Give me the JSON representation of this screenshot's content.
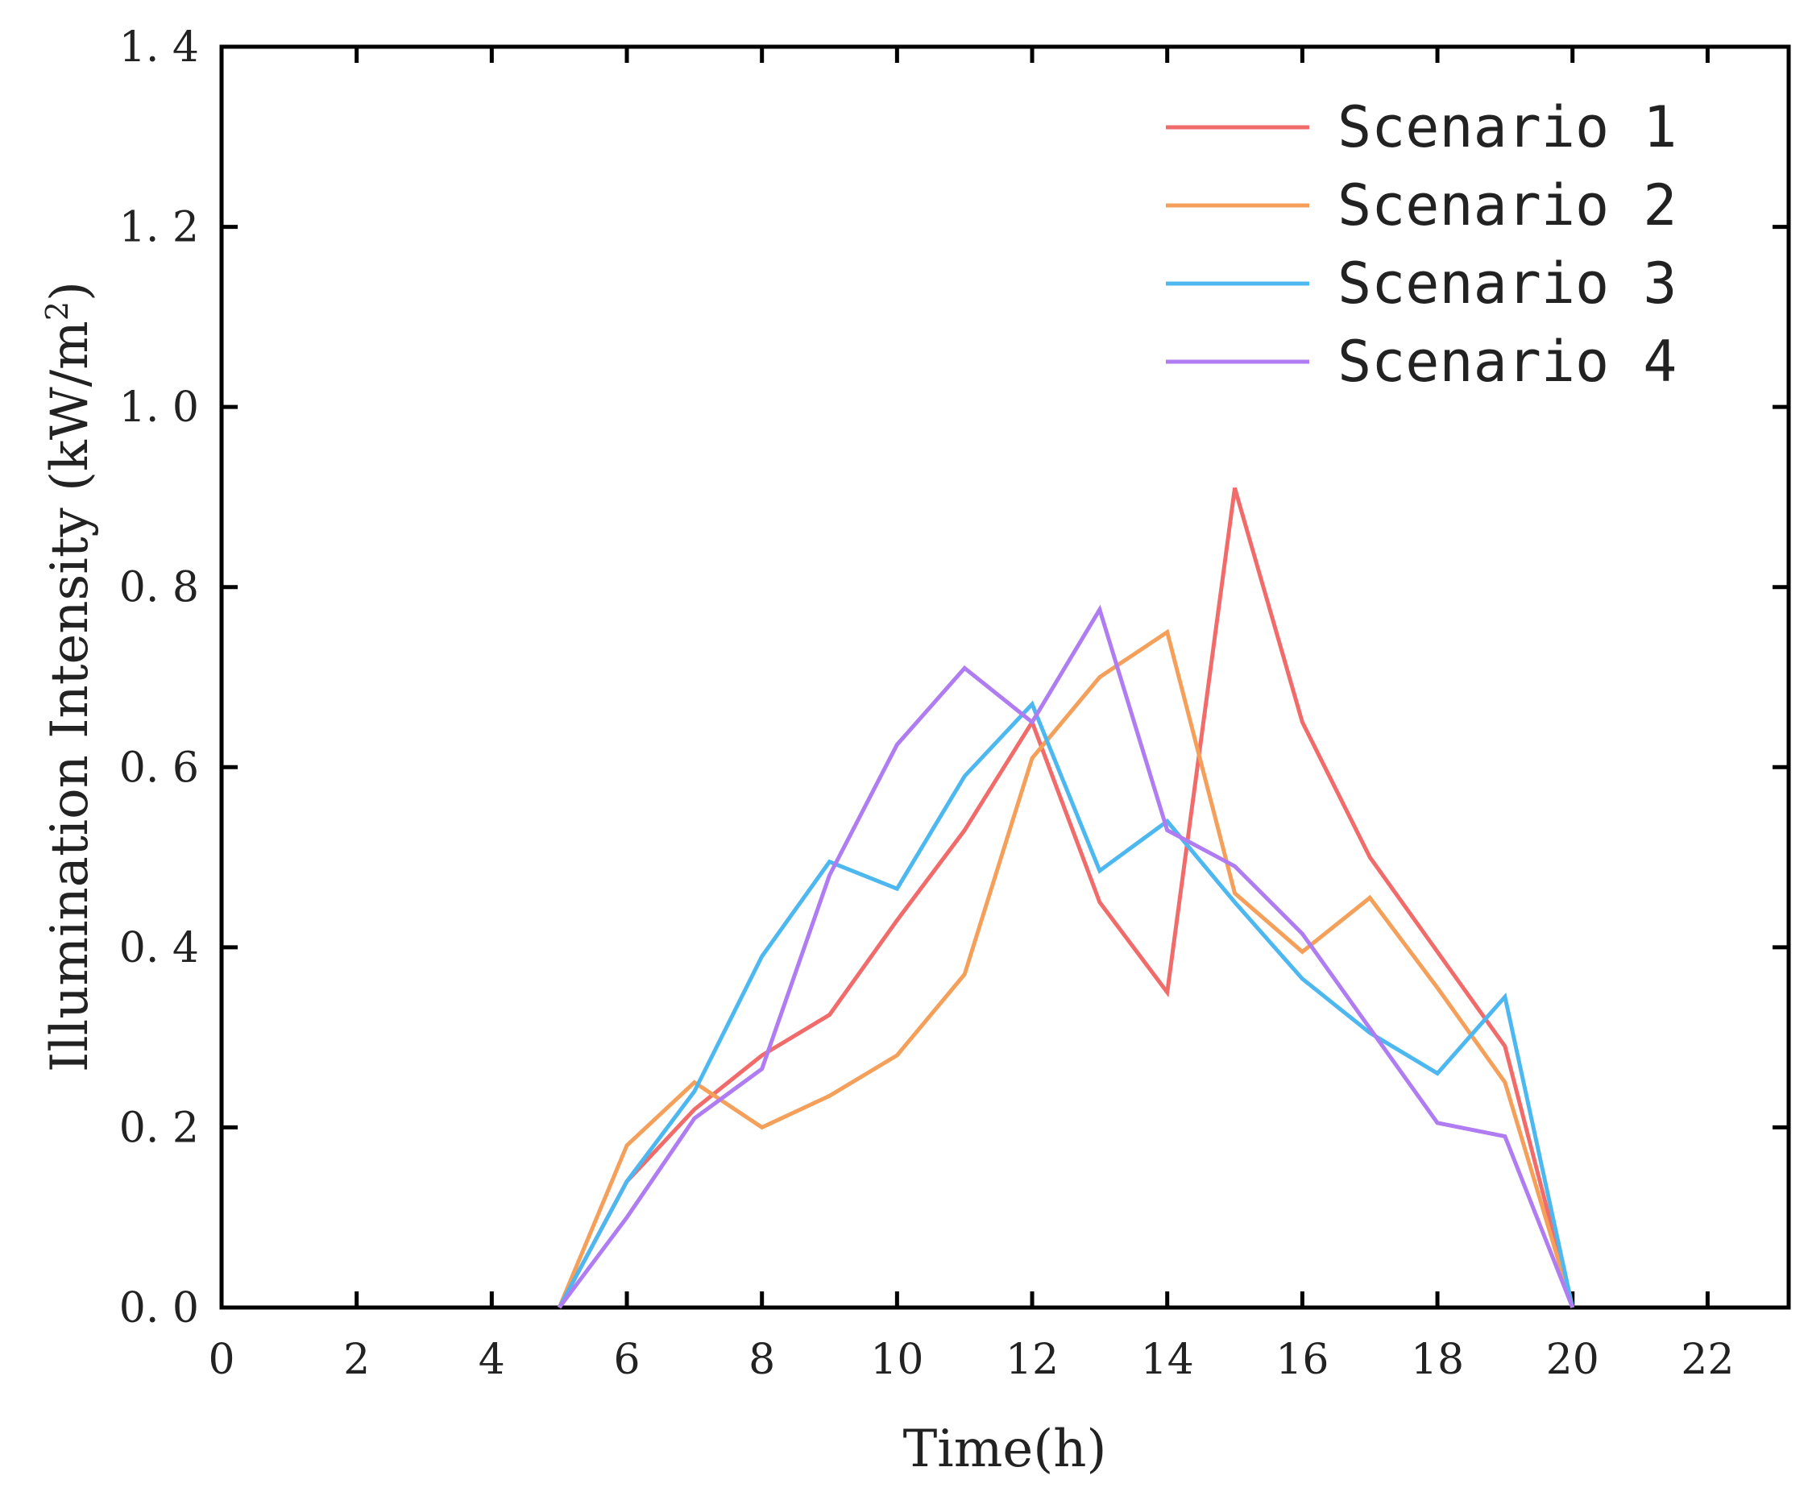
{
  "chart_data": {
    "type": "line",
    "xlabel": "Time(h)",
    "ylabel": "Illumination Intensity (kW/m",
    "ylabel_sup": "2",
    "ylabel_close": ")",
    "xlim": [
      0,
      23.2
    ],
    "ylim": [
      0,
      1.4
    ],
    "xticks": [
      0,
      2,
      4,
      6,
      8,
      10,
      12,
      14,
      16,
      18,
      20,
      22
    ],
    "yticks": [
      0,
      0.2,
      0.4,
      0.6,
      0.8,
      1.0,
      1.2,
      1.4
    ],
    "ytick_labels": [
      "0. 0",
      "0. 2",
      "0. 4",
      "0. 6",
      "0. 8",
      "1. 0",
      "1. 2",
      "1. 4"
    ],
    "legend_position": "top-right",
    "x": [
      5,
      6,
      7,
      8,
      9,
      10,
      11,
      12,
      13,
      14,
      15,
      16,
      17,
      18,
      19,
      20
    ],
    "series": [
      {
        "name": "Scenario 1",
        "color": "#f26b6b",
        "values": [
          0.0,
          0.14,
          0.22,
          0.28,
          0.325,
          0.43,
          0.53,
          0.65,
          0.45,
          0.35,
          0.91,
          0.65,
          0.5,
          0.395,
          0.29,
          0.0
        ]
      },
      {
        "name": "Scenario 2",
        "color": "#f5a05a",
        "values": [
          0.0,
          0.18,
          0.25,
          0.2,
          0.235,
          0.28,
          0.37,
          0.61,
          0.7,
          0.75,
          0.46,
          0.395,
          0.455,
          0.355,
          0.25,
          0.0
        ]
      },
      {
        "name": "Scenario 3",
        "color": "#4db8f0",
        "values": [
          0.0,
          0.14,
          0.24,
          0.39,
          0.495,
          0.465,
          0.59,
          0.67,
          0.485,
          0.54,
          0.45,
          0.365,
          0.305,
          0.26,
          0.345,
          0.0
        ]
      },
      {
        "name": "Scenario 4",
        "color": "#b07cf2",
        "values": [
          0.0,
          0.1,
          0.21,
          0.265,
          0.48,
          0.625,
          0.71,
          0.65,
          0.775,
          0.53,
          0.49,
          0.415,
          0.31,
          0.205,
          0.19,
          0.0
        ]
      }
    ]
  }
}
